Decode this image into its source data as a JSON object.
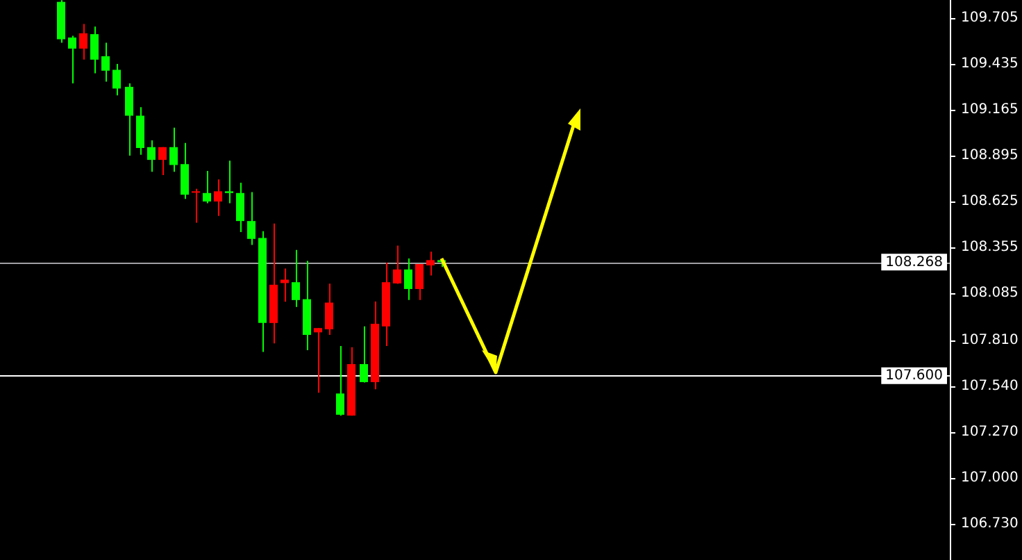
{
  "chart_data": {
    "type": "candlestick",
    "categories": [
      null,
      null,
      null,
      null,
      null,
      null,
      null,
      null,
      null,
      null,
      null,
      null,
      null,
      null,
      null,
      null,
      null,
      null,
      null,
      null,
      null,
      null,
      null,
      null,
      null,
      null,
      null,
      null,
      null,
      null,
      null,
      null,
      null,
      null,
      null,
      null,
      null,
      null,
      null,
      null,
      null,
      null,
      null,
      null,
      null,
      null,
      null,
      null,
      null,
      null,
      null,
      null,
      null,
      null,
      null,
      null,
      null,
      null,
      null,
      null,
      null,
      null,
      null,
      null,
      null,
      null,
      null,
      null,
      null,
      null,
      null,
      null,
      null,
      null,
      null,
      null,
      null,
      null,
      null,
      null,
      null,
      null,
      null,
      null,
      null
    ],
    "ohlc": [
      null,
      null,
      null,
      null,
      null,
      [
        109.8,
        109.81,
        109.56,
        109.58
      ],
      [
        109.59,
        109.6,
        109.32,
        109.525
      ],
      [
        109.525,
        109.67,
        109.46,
        109.615
      ],
      [
        109.61,
        109.655,
        109.38,
        109.46
      ],
      [
        109.48,
        109.56,
        109.33,
        109.395
      ],
      [
        109.4,
        109.435,
        109.25,
        109.29
      ],
      [
        109.3,
        109.32,
        108.895,
        109.13
      ],
      [
        109.13,
        109.18,
        108.9,
        108.94
      ],
      [
        108.945,
        108.985,
        108.8,
        108.87
      ],
      [
        108.87,
        108.945,
        108.78,
        108.945
      ],
      [
        108.945,
        109.06,
        108.8,
        108.84
      ],
      [
        108.845,
        108.97,
        108.64,
        108.665
      ],
      [
        108.68,
        108.7,
        108.5,
        108.685
      ],
      [
        108.675,
        108.805,
        108.615,
        108.625
      ],
      [
        108.625,
        108.755,
        108.54,
        108.685
      ],
      [
        108.685,
        108.865,
        108.615,
        108.675
      ],
      [
        108.675,
        108.735,
        108.445,
        108.51
      ],
      [
        108.51,
        108.68,
        108.37,
        108.405
      ],
      [
        108.41,
        108.45,
        107.74,
        107.91
      ],
      [
        107.91,
        108.495,
        107.79,
        108.135
      ],
      [
        108.145,
        108.23,
        108.035,
        108.165
      ],
      [
        108.15,
        108.34,
        108.005,
        108.045
      ],
      [
        108.05,
        108.275,
        107.75,
        107.84
      ],
      [
        107.855,
        107.88,
        107.5,
        107.88
      ],
      [
        107.873,
        108.142,
        107.84,
        108.03
      ],
      [
        107.495,
        107.775,
        107.365,
        107.37
      ],
      [
        107.365,
        107.767,
        107.365,
        107.668
      ],
      [
        107.668,
        107.89,
        107.56,
        107.562
      ],
      [
        107.562,
        108.036,
        107.52,
        107.905
      ],
      [
        107.89,
        108.265,
        107.775,
        108.15
      ],
      [
        108.143,
        108.365,
        108.14,
        108.225
      ],
      [
        108.225,
        108.29,
        108.045,
        108.11
      ],
      [
        108.11,
        108.257,
        108.045,
        108.257
      ],
      [
        108.249,
        108.33,
        108.19,
        108.28
      ],
      [
        108.28,
        108.29,
        108.24,
        108.268
      ],
      null,
      null,
      null,
      null,
      null,
      null,
      null,
      null,
      null,
      null,
      null,
      null,
      null,
      null,
      null,
      null,
      null,
      null,
      null,
      null,
      null,
      null,
      null,
      null,
      null,
      null,
      null,
      null,
      null,
      null,
      null,
      null,
      null,
      null,
      null,
      null,
      null,
      null,
      null,
      null,
      null,
      null,
      null,
      null,
      null
    ],
    "colors": [
      null,
      null,
      null,
      null,
      null,
      "#00ff00",
      "#00ff00",
      "#ff0000",
      "#00ff00",
      "#00ff00",
      "#00ff00",
      "#00ff00",
      "#00ff00",
      "#00ff00",
      "#ff0000",
      "#00ff00",
      "#00ff00",
      "#ff0000",
      "#00ff00",
      "#ff0000",
      "#00ff00",
      "#00ff00",
      "#00ff00",
      "#00ff00",
      "#ff0000",
      "#ff0000",
      "#00ff00",
      "#00ff00",
      "#ff0000",
      "#ff0000",
      "#00ff00",
      "#ff0000",
      "#00ff00",
      "#ff0000",
      "#ff0000",
      "#ff0000",
      "#00ff00",
      "#ff0000",
      "#ff0000",
      "#00ff00",
      null,
      null,
      null,
      null,
      null,
      null,
      null,
      null,
      null,
      null,
      null,
      null,
      null,
      null,
      null,
      null,
      null,
      null,
      null,
      null,
      null,
      null,
      null,
      null,
      null,
      null,
      null,
      null,
      null,
      null,
      null,
      null,
      null,
      null,
      null,
      null,
      null,
      null,
      null,
      null,
      null,
      null,
      null,
      null,
      null
    ],
    "ylim": [
      106.515,
      109.811
    ],
    "yticks": [
      109.705,
      109.435,
      109.165,
      108.895,
      108.625,
      108.355,
      108.085,
      {
        "value": 107.81,
        "label": "107.810"
      },
      {
        "value": 107.54,
        "label": "107.540"
      },
      {
        "value": 107.27,
        "label": "107.270"
      },
      {
        "value": 107.0,
        "label": "107.000"
      },
      {
        "value": 106.73,
        "label": "106.730"
      }
    ],
    "ref_lines": [
      {
        "axis": "y",
        "value": 108.268,
        "label": "108.268",
        "color": "#a0a0a4"
      },
      {
        "axis": "y",
        "value": 107.6,
        "label": "107.600",
        "color": "#ffffff"
      }
    ],
    "grid": false,
    "legend": false,
    "tick_labels": "y"
  }
}
